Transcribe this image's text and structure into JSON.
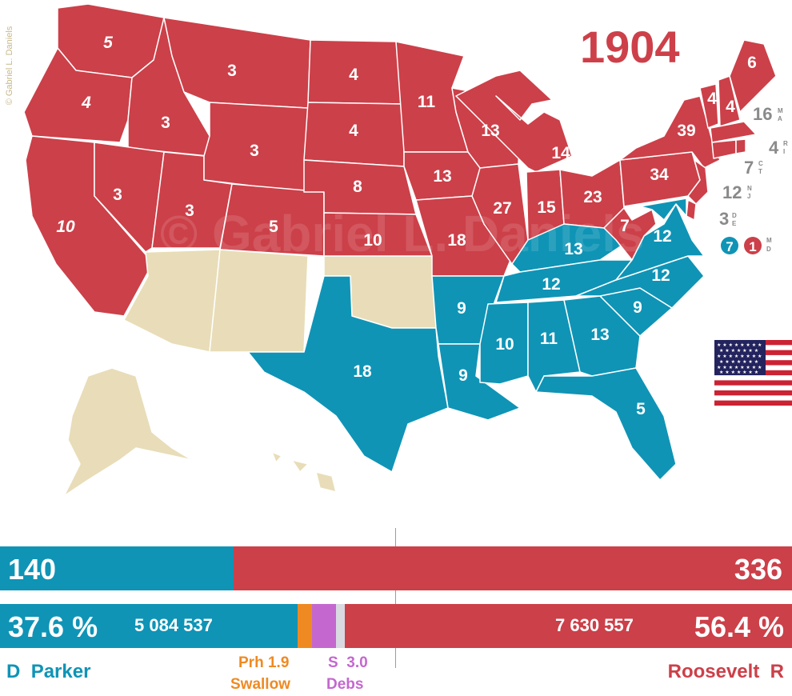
{
  "title": "1904",
  "copyright": "© Gabriel L. Daniels",
  "colors": {
    "democrat": "#0f94b6",
    "republican": "#cc4049",
    "territory": "#e8ddb8",
    "prohibition": "#ef8a22",
    "socialist": "#c468cf",
    "other": "#d9d9e1",
    "small_state_text": "#8a8a8a"
  },
  "map": {
    "states_ev": {
      "WA": "5",
      "OR": "4",
      "CA": "10",
      "ID": "3",
      "NV": "3",
      "UT": "3",
      "MT": "3",
      "WY": "3",
      "CO": "5",
      "ND": "4",
      "SD": "4",
      "NE": "8",
      "KS": "10",
      "MN": "11",
      "IA": "13",
      "MO": "18",
      "WI": "13",
      "IL": "27",
      "MI": "14",
      "IN": "15",
      "OH": "23",
      "PA": "34",
      "NY": "39",
      "WV": "7",
      "VT": "4",
      "NH": "4",
      "ME": "6",
      "KY": "13",
      "VA": "12",
      "NC": "12",
      "TN": "12",
      "SC": "9",
      "GA": "13",
      "AL": "11",
      "MS": "10",
      "AR": "9",
      "LA": "9",
      "TX": "18",
      "FL": "5"
    },
    "small_states": [
      {
        "num": "16",
        "abbr1": "M",
        "abbr2": "A"
      },
      {
        "num": "4",
        "abbr1": "R",
        "abbr2": "I"
      },
      {
        "num": "7",
        "abbr1": "C",
        "abbr2": "T"
      },
      {
        "num": "12",
        "abbr1": "N",
        "abbr2": "J"
      },
      {
        "num": "3",
        "abbr1": "D",
        "abbr2": "E"
      }
    ],
    "md_split": {
      "dem": "7",
      "rep": "1",
      "abbr1": "M",
      "abbr2": "D"
    }
  },
  "chart_data": {
    "type": "bar",
    "title": "1904",
    "electoral_votes": {
      "democrat": 140,
      "republican": 336
    },
    "popular_vote": [
      {
        "party": "D",
        "candidate": "Parker",
        "percent": 37.6,
        "votes": "5 084 537"
      },
      {
        "party": "Prh",
        "candidate": "Swallow",
        "percent": 1.9
      },
      {
        "party": "S",
        "candidate": "Debs",
        "percent": 3.0
      },
      {
        "party": "R",
        "candidate": "Roosevelt",
        "percent": 56.4,
        "votes": "7 630 557"
      }
    ]
  },
  "bars": {
    "dem_ev": "140",
    "rep_ev": "336",
    "dem_pct": "37.6 %",
    "dem_votes": "5 084 537",
    "rep_votes": "7 630 557",
    "rep_pct": "56.4 %"
  },
  "labels": {
    "dem_party": "D",
    "dem_name": "Parker",
    "prh_party": "Prh",
    "prh_pct": "1.9",
    "prh_name": "Swallow",
    "soc_party": "S",
    "soc_pct": "3.0",
    "soc_name": "Debs",
    "rep_name": "Roosevelt",
    "rep_party": "R"
  }
}
